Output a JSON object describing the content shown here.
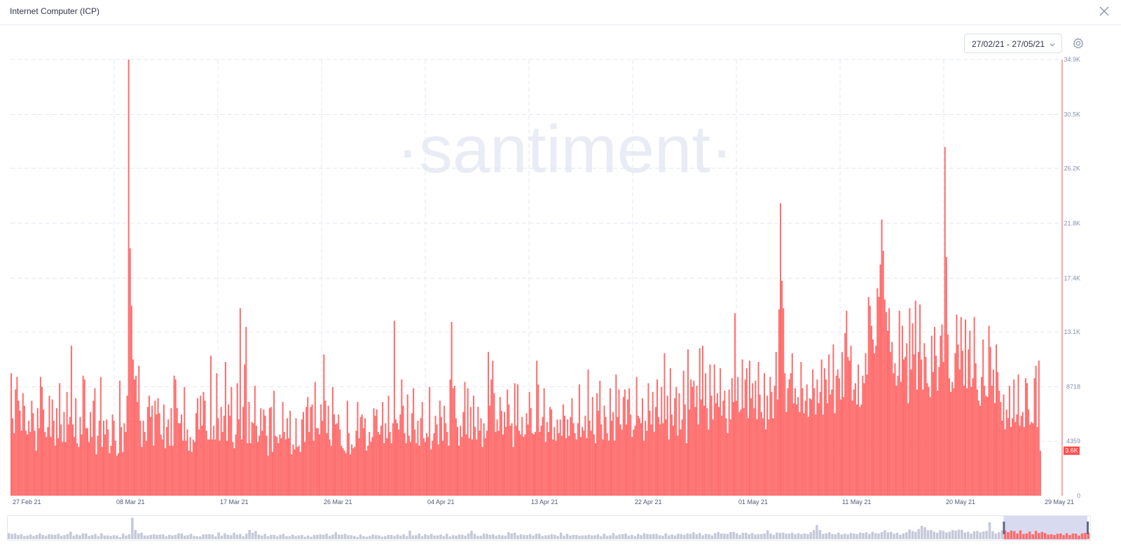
{
  "header": {
    "title": "Internet Computer (ICP)"
  },
  "controls": {
    "date_range": "27/02/21 - 27/05/21"
  },
  "icons": {
    "close": "close-icon",
    "chevron": "chevron-down-icon",
    "settings": "gear-icon"
  },
  "watermark": "·santiment·",
  "colors": {
    "bar": "#ff6b6b",
    "bar_stroke": "#ff4d4d",
    "axis_text": "#8590b0",
    "grid": "#e3e7f1",
    "watermark": "#e9ecf5",
    "brush": "#c7cce9",
    "nav_bar": "#c5c9d9"
  },
  "chart_data": {
    "type": "bar",
    "title": "",
    "xlabel": "",
    "ylabel": "",
    "ylim": [
      0,
      34900
    ],
    "y_ticks": [
      {
        "value": 0,
        "label": "0"
      },
      {
        "value": 4359,
        "label": "4359"
      },
      {
        "value": 8718,
        "label": "8718"
      },
      {
        "value": 13100,
        "label": "13.1K"
      },
      {
        "value": 17400,
        "label": "17.4K"
      },
      {
        "value": 21800,
        "label": "21.8K"
      },
      {
        "value": 26200,
        "label": "26.2K"
      },
      {
        "value": 30500,
        "label": "30.5K"
      },
      {
        "value": 34900,
        "label": "34.9K"
      }
    ],
    "x_ticks": [
      "27 Feb 21",
      "08 Mar 21",
      "17 Mar 21",
      "26 Mar 21",
      "04 Apr 21",
      "13 Apr 21",
      "22 Apr 21",
      "01 May 21",
      "11 May 21",
      "20 May 21",
      "29 May 21"
    ],
    "latest_value_label": "3.6K",
    "latest_value": 3600,
    "grid": true,
    "y_axis_position": "right",
    "values": [
      9800,
      6200,
      5000,
      8500,
      9500,
      7600,
      6800,
      5200,
      8200,
      7200,
      5200,
      4900,
      6000,
      5100,
      7600,
      6600,
      5200,
      3600,
      7000,
      5400,
      9500,
      8700,
      6900,
      5100,
      4700,
      5500,
      8000,
      4700,
      7700,
      6000,
      4000,
      7000,
      4600,
      9000,
      5700,
      4300,
      6700,
      4300,
      8300,
      5700,
      6300,
      12000,
      5700,
      4700,
      7800,
      4200,
      3900,
      6300,
      4900,
      9600,
      9300,
      5400,
      5400,
      4300,
      6700,
      4700,
      7600,
      8600,
      3300,
      4800,
      6000,
      9500,
      3900,
      6000,
      4900,
      6100,
      5300,
      3400,
      4000,
      6500,
      6000,
      4400,
      3200,
      3400,
      9200,
      5500,
      3500,
      5800,
      5100,
      8000,
      35500,
      19800,
      15200,
      10900,
      9300,
      9600,
      7500,
      10400,
      6000,
      3900,
      6000,
      5100,
      4400,
      7100,
      8000,
      6300,
      7200,
      4000,
      7600,
      6500,
      7800,
      6600,
      4900,
      4500,
      7300,
      3800,
      5500,
      6100,
      4000,
      7000,
      4000,
      9600,
      9300,
      7000,
      5800,
      5800,
      6500,
      4400,
      8700,
      4400,
      5300,
      3600,
      4700,
      3500,
      4500,
      4300,
      6600,
      7800,
      5300,
      8000,
      5600,
      8300,
      7600,
      5200,
      4500,
      4500,
      11200,
      4500,
      5600,
      4500,
      9800,
      6200,
      4400,
      7100,
      5100,
      6400,
      10700,
      4400,
      7300,
      6400,
      8700,
      4300,
      3800,
      4900,
      9000,
      6100,
      15000,
      4500,
      7100,
      10500,
      13500,
      4200,
      7500,
      4200,
      5900,
      5800,
      8800,
      5600,
      4300,
      4800,
      7000,
      5200,
      6900,
      6400,
      4800,
      3200,
      7000,
      7100,
      3500,
      8400,
      4800,
      4700,
      4200,
      4900,
      4600,
      7500,
      5100,
      4500,
      6200,
      4600,
      6800,
      3300,
      4100,
      3700,
      6200,
      3900,
      4000,
      3500,
      6100,
      6700,
      4300,
      7100,
      7900,
      5100,
      7100,
      7300,
      4400,
      9100,
      5400,
      5400,
      4900,
      7300,
      6000,
      11300,
      7600,
      5000,
      7200,
      4500,
      4000,
      8700,
      6500,
      5700,
      5800,
      6500,
      5300,
      4000,
      3800,
      3600,
      3400,
      7600,
      5000,
      3300,
      4100,
      3800,
      3900,
      5200,
      7500,
      4600,
      6300,
      6500,
      5400,
      6200,
      3600,
      4000,
      5100,
      4300,
      4700,
      7000,
      6400,
      6900,
      5100,
      4900,
      5600,
      7500,
      4200,
      5800,
      4600,
      8000,
      5100,
      4200,
      5800,
      14000,
      6100,
      5800,
      5300,
      6500,
      9300,
      7200,
      5000,
      4200,
      8100,
      4800,
      4300,
      6600,
      8600,
      5300,
      4200,
      6000,
      4000,
      6200,
      7500,
      4600,
      4300,
      5000,
      4700,
      8700,
      3700,
      4400,
      5000,
      6400,
      5700,
      4100,
      7600,
      6300,
      4400,
      7200,
      5800,
      5100,
      4000,
      9300,
      13900,
      8600,
      8800,
      6200,
      5500,
      4000,
      5600,
      4700,
      6700,
      9100,
      4900,
      8600,
      4600,
      7100,
      4500,
      8000,
      5500,
      4500,
      7100,
      5200,
      6200,
      3900,
      5800,
      4600,
      5200,
      11500,
      7200,
      9300,
      10800,
      8200,
      5100,
      6100,
      5200,
      7900,
      6800,
      4900,
      6700,
      5500,
      8500,
      7300,
      5600,
      5800,
      3900,
      9000,
      5600,
      8900,
      5200,
      4900,
      6300,
      4700,
      4900,
      6600,
      5700,
      8300,
      7000,
      5000,
      4900,
      5100,
      10800,
      8900,
      5100,
      5600,
      6300,
      8600,
      4300,
      5900,
      5100,
      7100,
      6900,
      4500,
      5500,
      4400,
      6100,
      5000,
      6100,
      4800,
      7300,
      6400,
      4600,
      6100,
      4800,
      6300,
      7800,
      5800,
      5000,
      4500,
      5800,
      8900,
      4700,
      5500,
      5200,
      6400,
      4600,
      10100,
      6000,
      5200,
      7900,
      4900,
      4200,
      8200,
      6800,
      9200,
      5700,
      4500,
      7200,
      6300,
      5000,
      4400,
      8600,
      6000,
      6700,
      4400,
      9700,
      6300,
      8500,
      5700,
      5300,
      7900,
      8500,
      5700,
      7700,
      8600,
      6500,
      4700,
      5300,
      5600,
      9500,
      6400,
      6200,
      5800,
      7800,
      4400,
      6000,
      5200,
      9000,
      6800,
      5700,
      8300,
      5100,
      7100,
      9300,
      6300,
      5700,
      8700,
      5800,
      11400,
      6100,
      8000,
      4500,
      10200,
      6500,
      5600,
      7800,
      8700,
      4800,
      8200,
      5300,
      6100,
      10000,
      7300,
      4200,
      11700,
      6900,
      9300,
      8700,
      9200,
      7100,
      8800,
      5700,
      11800,
      7700,
      12000,
      7200,
      9800,
      7000,
      5300,
      10500,
      8000,
      6100,
      10500,
      7400,
      8200,
      7100,
      10200,
      6400,
      7600,
      8400,
      6200,
      5000,
      8500,
      6100,
      9400,
      7500,
      14600,
      7600,
      9500,
      6700,
      6900,
      10900,
      7000,
      9300,
      10200,
      6200,
      10800,
      7800,
      9000,
      7000,
      9200,
      6100,
      10700,
      8100,
      6700,
      6200,
      9800,
      5300,
      8000,
      6100,
      9500,
      8300,
      6200,
      8800,
      11500,
      7700,
      14900,
      23400,
      17200,
      15000,
      9800,
      6700,
      8600,
      9300,
      9800,
      11400,
      7400,
      8600,
      7300,
      7900,
      6700,
      10700,
      8600,
      6600,
      7600,
      8900,
      6300,
      7800,
      7700,
      10100,
      8600,
      6500,
      9300,
      7400,
      8300,
      10900,
      6500,
      10200,
      9300,
      7400,
      11300,
      8100,
      8500,
      12100,
      6600,
      9600,
      10100,
      9400,
      7700,
      11500,
      7900,
      13000,
      14800,
      11100,
      10800,
      12000,
      7600,
      8500,
      9000,
      7300,
      10500,
      7100,
      7300,
      9600,
      9000,
      11400,
      9700,
      15900,
      15200,
      13600,
      12500,
      11400,
      12000,
      16600,
      15900,
      18500,
      22100,
      19600,
      15700,
      14700,
      13200,
      15000,
      11500,
      12300,
      9800,
      10600,
      8800,
      9600,
      14800,
      9100,
      13600,
      10900,
      11100,
      12200,
      7400,
      15000,
      10100,
      13800,
      11300,
      15600,
      8500,
      11500,
      15300,
      10900,
      8500,
      12200,
      11100,
      9000,
      8700,
      7900,
      12800,
      9900,
      13500,
      11200,
      8400,
      10300,
      12800,
      13700,
      10700,
      27900,
      19100,
      12900,
      9400,
      8300,
      9100,
      8600,
      11400,
      14500,
      12100,
      10100,
      14300,
      11600,
      8800,
      14100,
      8600,
      11700,
      13200,
      8700,
      9400,
      14300,
      10600,
      8500,
      7600,
      7200,
      9500,
      12500,
      8800,
      8000,
      7900,
      13600,
      11900,
      8800,
      10100,
      7400,
      12100,
      9900,
      8400,
      7500,
      6000,
      8100,
      5300,
      6900,
      6200,
      8800,
      5500,
      6200,
      9300,
      5900,
      6500,
      9700,
      5600,
      6400,
      6700,
      5500,
      9400,
      9000,
      6900,
      5700,
      5900,
      5800,
      9400,
      10400,
      5500,
      10800,
      3600
    ],
    "nav_highlight_start": 0.92
  }
}
